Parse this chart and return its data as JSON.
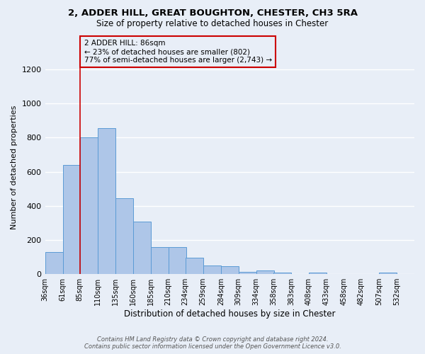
{
  "title_line1": "2, ADDER HILL, GREAT BOUGHTON, CHESTER, CH3 5RA",
  "title_line2": "Size of property relative to detached houses in Chester",
  "xlabel": "Distribution of detached houses by size in Chester",
  "ylabel": "Number of detached properties",
  "bar_values": [
    130,
    640,
    800,
    855,
    445,
    310,
    158,
    158,
    95,
    52,
    45,
    15,
    20,
    8,
    2,
    8,
    2,
    2,
    0,
    8
  ],
  "bin_labels": [
    "36sqm",
    "61sqm",
    "85sqm",
    "110sqm",
    "135sqm",
    "160sqm",
    "185sqm",
    "210sqm",
    "234sqm",
    "259sqm",
    "284sqm",
    "309sqm",
    "334sqm",
    "358sqm",
    "383sqm",
    "408sqm",
    "433sqm",
    "458sqm",
    "482sqm",
    "507sqm",
    "532sqm"
  ],
  "bin_starts": [
    36,
    61,
    85,
    110,
    135,
    160,
    185,
    210,
    234,
    259,
    284,
    309,
    334,
    358,
    383,
    408,
    433,
    458,
    482,
    507
  ],
  "bin_width": 25,
  "bar_color": "#aec6e8",
  "bar_edge_color": "#5b9bd5",
  "background_color": "#e8eef7",
  "grid_color": "#ffffff",
  "marker_x": 85,
  "marker_color": "#cc0000",
  "annotation_title": "2 ADDER HILL: 86sqm",
  "annotation_line2": "← 23% of detached houses are smaller (802)",
  "annotation_line3": "77% of semi-detached houses are larger (2,743) →",
  "annotation_box_color": "#cc0000",
  "ylim": [
    0,
    1250
  ],
  "yticks": [
    0,
    200,
    400,
    600,
    800,
    1000,
    1200
  ],
  "footer_line1": "Contains HM Land Registry data © Crown copyright and database right 2024.",
  "footer_line2": "Contains public sector information licensed under the Open Government Licence v3.0.",
  "xlim_left": 36,
  "xlim_right": 557
}
